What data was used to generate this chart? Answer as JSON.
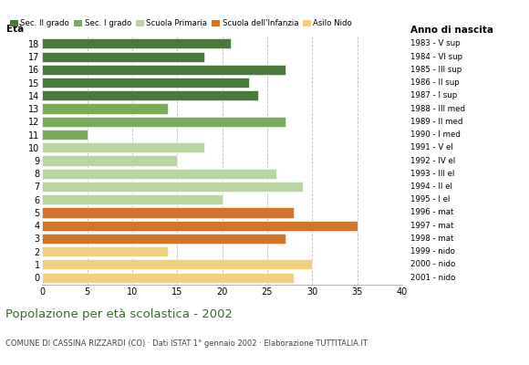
{
  "ages": [
    18,
    17,
    16,
    15,
    14,
    13,
    12,
    11,
    10,
    9,
    8,
    7,
    6,
    5,
    4,
    3,
    2,
    1,
    0
  ],
  "values": [
    21,
    18,
    27,
    23,
    24,
    14,
    27,
    5,
    18,
    15,
    26,
    29,
    20,
    28,
    35,
    27,
    14,
    30,
    28
  ],
  "categories": [
    "Sec. II grado",
    "Sec. II grado",
    "Sec. II grado",
    "Sec. II grado",
    "Sec. II grado",
    "Sec. I grado",
    "Sec. I grado",
    "Sec. I grado",
    "Scuola Primaria",
    "Scuola Primaria",
    "Scuola Primaria",
    "Scuola Primaria",
    "Scuola Primaria",
    "Scuola dell'Infanzia",
    "Scuola dell'Infanzia",
    "Scuola dell'Infanzia",
    "Asilo Nido",
    "Asilo Nido",
    "Asilo Nido"
  ],
  "colors": {
    "Sec. II grado": "#4a7a3b",
    "Sec. I grado": "#7aab5a",
    "Scuola Primaria": "#b8d4a0",
    "Scuola dell'Infanzia": "#d4732a",
    "Asilo Nido": "#f0d080"
  },
  "right_labels": [
    "1983 - V sup",
    "1984 - VI sup",
    "1985 - III sup",
    "1986 - II sup",
    "1987 - I sup",
    "1988 - III med",
    "1989 - II med",
    "1990 - I med",
    "1991 - V el",
    "1992 - IV el",
    "1993 - III el",
    "1994 - II el",
    "1995 - I el",
    "1996 - mat",
    "1997 - mat",
    "1998 - mat",
    "1999 - nido",
    "2000 - nido",
    "2001 - nido"
  ],
  "legend_order": [
    "Sec. II grado",
    "Sec. I grado",
    "Scuola Primaria",
    "Scuola dell'Infanzia",
    "Asilo Nido"
  ],
  "title": "Popolazione per età scolastica - 2002",
  "subtitle": "COMUNE DI CASSINA RIZZARDI (CO) · Dati ISTAT 1° gennaio 2002 · Elaborazione TUTTITALIA.IT",
  "xlabel_eta": "Età",
  "xlabel_anno": "Anno di nascita",
  "xlim": [
    0,
    40
  ],
  "xticks": [
    0,
    5,
    10,
    15,
    20,
    25,
    30,
    35,
    40
  ],
  "grid_color": "#bbbbbb",
  "bar_height": 0.78,
  "title_color": "#3a6b2a",
  "subtitle_color": "#444444"
}
